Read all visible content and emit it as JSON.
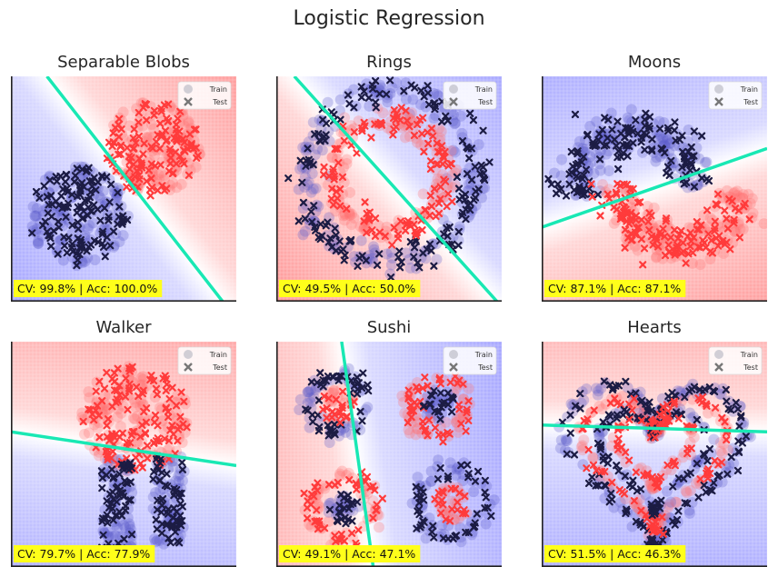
{
  "suptitle": "Logistic Regression",
  "legend": {
    "train": "Train",
    "test": "Test"
  },
  "colors": {
    "red": "#ff3b3b",
    "blue": "#1a1a4a",
    "boundary": "#19e8b4",
    "label_bg": "#ffff1a"
  },
  "chart_data": [
    {
      "type": "scatter",
      "title": "Separable Blobs",
      "score": "CV: 99.8% | Acc: 100.0%",
      "xlim": [
        0,
        1
      ],
      "ylim": [
        0,
        1
      ],
      "boundary": [
        [
          0.16,
          1.0
        ],
        [
          0.94,
          0.0
        ]
      ],
      "red_side": "right",
      "clusters": [
        {
          "class": "red",
          "shape": "blob",
          "cx": 0.63,
          "cy": 0.68,
          "r": 0.21,
          "n": 150
        },
        {
          "class": "blue",
          "shape": "blob",
          "cx": 0.3,
          "cy": 0.38,
          "r": 0.22,
          "n": 150
        }
      ]
    },
    {
      "type": "scatter",
      "title": "Rings",
      "score": "CV: 49.5% | Acc: 50.0%",
      "xlim": [
        0,
        1
      ],
      "ylim": [
        0,
        1
      ],
      "boundary": [
        [
          0.08,
          1.0
        ],
        [
          0.98,
          0.0
        ]
      ],
      "red_side": "left",
      "clusters": [
        {
          "class": "blue",
          "shape": "ring",
          "cx": 0.5,
          "cy": 0.56,
          "r": 0.38,
          "w": 0.07,
          "n": 180
        },
        {
          "class": "red",
          "shape": "ring",
          "cx": 0.5,
          "cy": 0.56,
          "r": 0.25,
          "w": 0.06,
          "n": 140
        }
      ]
    },
    {
      "type": "scatter",
      "title": "Moons",
      "score": "CV: 87.1% | Acc: 87.1%",
      "xlim": [
        0,
        1
      ],
      "ylim": [
        0,
        1
      ],
      "boundary": [
        [
          0.0,
          0.33
        ],
        [
          1.0,
          0.68
        ]
      ],
      "red_side": "below",
      "clusters": [
        {
          "class": "blue",
          "shape": "moon_up",
          "cx": 0.42,
          "cy": 0.58,
          "r": 0.28,
          "w": 0.1,
          "n": 160
        },
        {
          "class": "red",
          "shape": "moon_down",
          "cx": 0.62,
          "cy": 0.42,
          "r": 0.28,
          "w": 0.1,
          "n": 160
        }
      ]
    },
    {
      "type": "scatter",
      "title": "Walker",
      "score": "CV: 79.7% | Acc: 77.9%",
      "xlim": [
        0,
        1
      ],
      "ylim": [
        0,
        1
      ],
      "boundary": [
        [
          0.0,
          0.6
        ],
        [
          1.0,
          0.45
        ]
      ],
      "red_side": "above",
      "clusters": [
        {
          "class": "red",
          "shape": "blob",
          "cx": 0.55,
          "cy": 0.66,
          "r": 0.24,
          "n": 150
        },
        {
          "class": "blue",
          "shape": "leg",
          "cx": 0.47,
          "cy": 0.28,
          "r": 0.2,
          "n": 70
        },
        {
          "class": "blue",
          "shape": "leg",
          "cx": 0.7,
          "cy": 0.3,
          "r": 0.2,
          "n": 70
        }
      ]
    },
    {
      "type": "scatter",
      "title": "Sushi",
      "score": "CV: 49.1% | Acc: 47.1%",
      "xlim": [
        0,
        1
      ],
      "ylim": [
        0,
        1
      ],
      "boundary": [
        [
          0.29,
          1.0
        ],
        [
          0.43,
          0.0
        ]
      ],
      "red_side": "left",
      "clusters": [
        {
          "class": "blue",
          "shape": "ring",
          "cx": 0.27,
          "cy": 0.72,
          "r": 0.13,
          "w": 0.04,
          "n": 55
        },
        {
          "class": "red",
          "shape": "blob",
          "cx": 0.27,
          "cy": 0.72,
          "r": 0.08,
          "n": 25
        },
        {
          "class": "red",
          "shape": "ring",
          "cx": 0.72,
          "cy": 0.72,
          "r": 0.13,
          "w": 0.04,
          "n": 55
        },
        {
          "class": "blue",
          "shape": "blob",
          "cx": 0.72,
          "cy": 0.72,
          "r": 0.07,
          "n": 25
        },
        {
          "class": "red",
          "shape": "ring",
          "cx": 0.3,
          "cy": 0.26,
          "r": 0.14,
          "w": 0.04,
          "n": 55
        },
        {
          "class": "blue",
          "shape": "blob",
          "cx": 0.3,
          "cy": 0.26,
          "r": 0.07,
          "n": 25
        },
        {
          "class": "blue",
          "shape": "ring",
          "cx": 0.78,
          "cy": 0.28,
          "r": 0.15,
          "w": 0.04,
          "n": 55
        },
        {
          "class": "red",
          "shape": "blob",
          "cx": 0.78,
          "cy": 0.28,
          "r": 0.08,
          "n": 25
        }
      ]
    },
    {
      "type": "scatter",
      "title": "Hearts",
      "score": "CV: 51.5% | Acc: 46.3%",
      "xlim": [
        0,
        1
      ],
      "ylim": [
        0,
        1
      ],
      "boundary": [
        [
          0.0,
          0.63
        ],
        [
          1.0,
          0.6
        ]
      ],
      "red_side": "above",
      "clusters": [
        {
          "class": "blue",
          "shape": "heart",
          "cx": 0.5,
          "cy": 0.5,
          "r": 0.42,
          "w": 0.03,
          "n": 140
        },
        {
          "class": "red",
          "shape": "heart",
          "cx": 0.5,
          "cy": 0.5,
          "r": 0.34,
          "w": 0.025,
          "n": 110
        },
        {
          "class": "blue",
          "shape": "heart",
          "cx": 0.5,
          "cy": 0.5,
          "r": 0.26,
          "w": 0.02,
          "n": 85
        },
        {
          "class": "red",
          "shape": "heart",
          "cx": 0.5,
          "cy": 0.53,
          "r": 0.18,
          "w": 0.02,
          "n": 60
        }
      ]
    }
  ]
}
